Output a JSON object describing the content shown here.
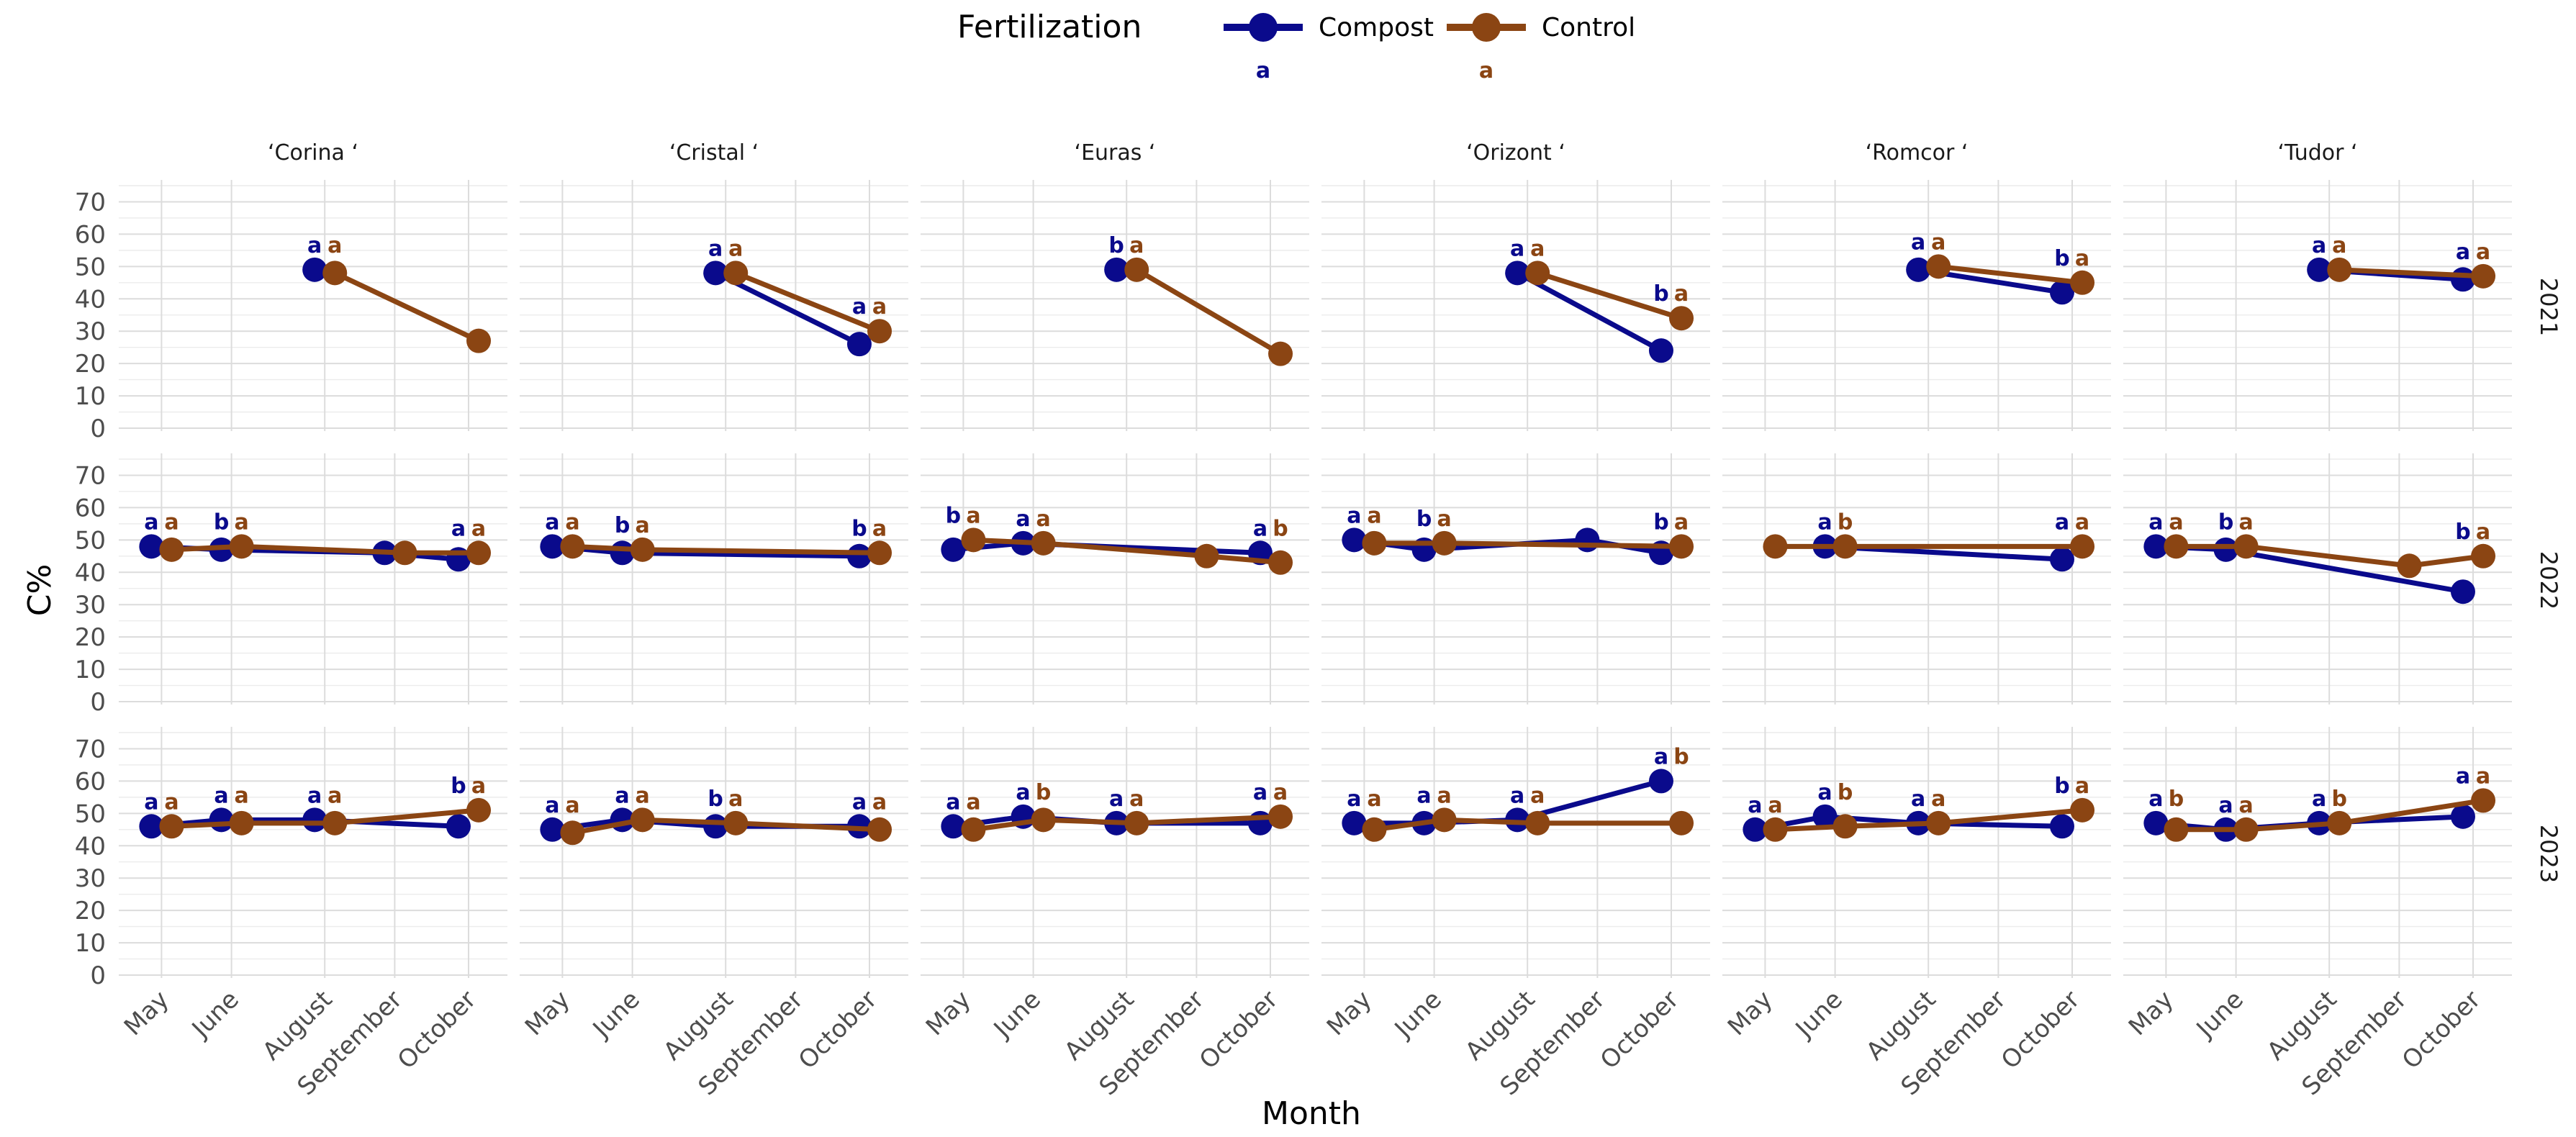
{
  "chart_data": {
    "type": "line",
    "ylabel": "C%",
    "xlabel": "Month",
    "ylim": [
      0,
      75
    ],
    "yticks": [
      0,
      10,
      20,
      30,
      40,
      50,
      60,
      70
    ],
    "months": [
      "May",
      "June",
      "August",
      "September",
      "October"
    ],
    "columns": [
      "‘Corina ‘",
      "‘Cristal ‘",
      "‘Euras ‘",
      "‘Orizont ‘",
      "‘Romcor ‘",
      "‘Tudor ‘"
    ],
    "rows": [
      "2021",
      "2022",
      "2023"
    ],
    "legend": {
      "title": "Fertilization",
      "position": "top",
      "entries": [
        {
          "name": "Compost",
          "color": "#0a0a8c",
          "letter": "a"
        },
        {
          "name": "Control",
          "color": "#8b4513",
          "letter": "a"
        }
      ]
    },
    "series_colors": {
      "Compost": "#0a0a8c",
      "Control": "#8b4513"
    },
    "panels": [
      {
        "row": "2021",
        "col": "‘Corina ‘",
        "Compost": {
          "values": [
            null,
            null,
            49,
            null,
            null
          ],
          "letters": [
            "",
            "",
            "a",
            "",
            ""
          ]
        },
        "Control": {
          "values": [
            null,
            null,
            48,
            null,
            27
          ],
          "letters": [
            "",
            "",
            "a",
            "",
            ""
          ]
        }
      },
      {
        "row": "2021",
        "col": "‘Cristal ‘",
        "Compost": {
          "values": [
            null,
            null,
            48,
            null,
            26
          ],
          "letters": [
            "",
            "",
            "a",
            "",
            "a"
          ]
        },
        "Control": {
          "values": [
            null,
            null,
            48,
            null,
            30
          ],
          "letters": [
            "",
            "",
            "a",
            "",
            "a"
          ]
        }
      },
      {
        "row": "2021",
        "col": "‘Euras ‘",
        "Compost": {
          "values": [
            null,
            null,
            49,
            null,
            null
          ],
          "letters": [
            "",
            "",
            "b",
            "",
            ""
          ]
        },
        "Control": {
          "values": [
            null,
            null,
            49,
            null,
            23
          ],
          "letters": [
            "",
            "",
            "a",
            "",
            ""
          ]
        }
      },
      {
        "row": "2021",
        "col": "‘Orizont ‘",
        "Compost": {
          "values": [
            null,
            null,
            48,
            null,
            24
          ],
          "letters": [
            "",
            "",
            "a",
            "",
            "b"
          ]
        },
        "Control": {
          "values": [
            null,
            null,
            48,
            null,
            34
          ],
          "letters": [
            "",
            "",
            "a",
            "",
            "a"
          ]
        }
      },
      {
        "row": "2021",
        "col": "‘Romcor ‘",
        "Compost": {
          "values": [
            null,
            null,
            49,
            null,
            42
          ],
          "letters": [
            "",
            "",
            "a",
            "",
            "b"
          ]
        },
        "Control": {
          "values": [
            null,
            null,
            50,
            null,
            45
          ],
          "letters": [
            "",
            "",
            "a",
            "",
            "a"
          ]
        }
      },
      {
        "row": "2021",
        "col": "‘Tudor ‘",
        "Compost": {
          "values": [
            null,
            null,
            49,
            null,
            46
          ],
          "letters": [
            "",
            "",
            "a",
            "",
            "a"
          ]
        },
        "Control": {
          "values": [
            null,
            null,
            49,
            null,
            47
          ],
          "letters": [
            "",
            "",
            "a",
            "",
            "a"
          ]
        }
      },
      {
        "row": "2022",
        "col": "‘Corina ‘",
        "Compost": {
          "values": [
            48,
            47,
            null,
            46,
            44
          ],
          "letters": [
            "a",
            "b",
            "",
            "",
            "a"
          ]
        },
        "Control": {
          "values": [
            47,
            48,
            null,
            46,
            46
          ],
          "letters": [
            "a",
            "a",
            "",
            "",
            "a"
          ]
        }
      },
      {
        "row": "2022",
        "col": "‘Cristal ‘",
        "Compost": {
          "values": [
            48,
            46,
            null,
            null,
            45
          ],
          "letters": [
            "a",
            "b",
            "",
            "",
            "b"
          ]
        },
        "Control": {
          "values": [
            48,
            47,
            null,
            null,
            46
          ],
          "letters": [
            "a",
            "a",
            "",
            "",
            "a"
          ]
        }
      },
      {
        "row": "2022",
        "col": "‘Euras ‘",
        "Compost": {
          "values": [
            47,
            49,
            null,
            null,
            46
          ],
          "letters": [
            "b",
            "a",
            "",
            "",
            "a"
          ]
        },
        "Control": {
          "values": [
            50,
            49,
            null,
            45,
            43
          ],
          "letters": [
            "a",
            "a",
            "",
            "",
            "b"
          ]
        }
      },
      {
        "row": "2022",
        "col": "‘Orizont ‘",
        "Compost": {
          "values": [
            50,
            47,
            null,
            50,
            46
          ],
          "letters": [
            "a",
            "b",
            "",
            "",
            "b"
          ]
        },
        "Control": {
          "values": [
            49,
            49,
            null,
            null,
            48
          ],
          "letters": [
            "a",
            "a",
            "",
            "",
            "a"
          ]
        }
      },
      {
        "row": "2022",
        "col": "‘Romcor ‘",
        "Compost": {
          "values": [
            null,
            48,
            null,
            null,
            44
          ],
          "letters": [
            "",
            "a",
            "",
            "",
            "a"
          ]
        },
        "Control": {
          "values": [
            48,
            48,
            null,
            null,
            48
          ],
          "letters": [
            "",
            "b",
            "",
            "",
            "a"
          ]
        }
      },
      {
        "row": "2022",
        "col": "‘Tudor ‘",
        "Compost": {
          "values": [
            48,
            47,
            null,
            null,
            34
          ],
          "letters": [
            "a",
            "b",
            "",
            "",
            "b"
          ]
        },
        "Control": {
          "values": [
            48,
            48,
            null,
            42,
            45
          ],
          "letters": [
            "a",
            "a",
            "",
            "",
            "a"
          ]
        }
      },
      {
        "row": "2023",
        "col": "‘Corina ‘",
        "Compost": {
          "values": [
            46,
            48,
            48,
            null,
            46
          ],
          "letters": [
            "a",
            "a",
            "a",
            "",
            "b"
          ]
        },
        "Control": {
          "values": [
            46,
            47,
            47,
            null,
            51
          ],
          "letters": [
            "a",
            "a",
            "a",
            "",
            "a"
          ]
        }
      },
      {
        "row": "2023",
        "col": "‘Cristal ‘",
        "Compost": {
          "values": [
            45,
            48,
            46,
            null,
            46
          ],
          "letters": [
            "a",
            "a",
            "b",
            "",
            "a"
          ]
        },
        "Control": {
          "values": [
            44,
            48,
            47,
            null,
            45
          ],
          "letters": [
            "a",
            "a",
            "a",
            "",
            "a"
          ]
        }
      },
      {
        "row": "2023",
        "col": "‘Euras ‘",
        "Compost": {
          "values": [
            46,
            49,
            47,
            null,
            47
          ],
          "letters": [
            "a",
            "a",
            "a",
            "",
            "a"
          ]
        },
        "Control": {
          "values": [
            45,
            48,
            47,
            null,
            49
          ],
          "letters": [
            "a",
            "b",
            "a",
            "",
            "a"
          ]
        }
      },
      {
        "row": "2023",
        "col": "‘Orizont ‘",
        "Compost": {
          "values": [
            47,
            47,
            48,
            null,
            60
          ],
          "letters": [
            "a",
            "a",
            "a",
            "",
            "a"
          ]
        },
        "Control": {
          "values": [
            45,
            48,
            47,
            null,
            47
          ],
          "letters": [
            "a",
            "a",
            "a",
            "",
            "b"
          ]
        }
      },
      {
        "row": "2023",
        "col": "‘Romcor ‘",
        "Compost": {
          "values": [
            45,
            49,
            47,
            null,
            46
          ],
          "letters": [
            "a",
            "a",
            "a",
            "",
            "b"
          ]
        },
        "Control": {
          "values": [
            45,
            46,
            47,
            null,
            51
          ],
          "letters": [
            "a",
            "b",
            "a",
            "",
            "a"
          ]
        }
      },
      {
        "row": "2023",
        "col": "‘Tudor ‘",
        "Compost": {
          "values": [
            47,
            45,
            47,
            null,
            49
          ],
          "letters": [
            "a",
            "a",
            "a",
            "",
            "a"
          ]
        },
        "Control": {
          "values": [
            45,
            45,
            47,
            null,
            54
          ],
          "letters": [
            "b",
            "a",
            "b",
            "",
            "a"
          ]
        }
      }
    ]
  }
}
